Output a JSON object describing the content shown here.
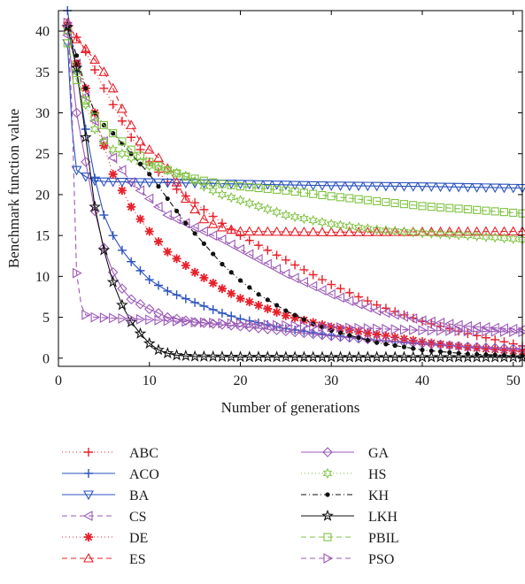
{
  "chart_data": {
    "type": "line",
    "title": "",
    "xlabel": "Number of generations",
    "ylabel": "Benchmark function value",
    "xlim": [
      0,
      51
    ],
    "ylim": [
      -1,
      42.5
    ],
    "xticks": [
      0,
      10,
      20,
      30,
      40,
      50
    ],
    "yticks": [
      0,
      5,
      10,
      15,
      20,
      25,
      30,
      35,
      40
    ],
    "grid": false,
    "legend_position": "bottom",
    "series": [
      {
        "name": "ABC",
        "color": "#e8202a",
        "dash": "1,3",
        "marker": "plus",
        "points": [
          [
            1,
            41
          ],
          [
            3,
            37.5
          ],
          [
            5,
            33
          ],
          [
            8,
            27
          ],
          [
            10,
            24
          ],
          [
            12,
            21.5
          ],
          [
            15,
            19
          ],
          [
            18,
            16.5
          ],
          [
            20,
            15
          ],
          [
            25,
            12
          ],
          [
            30,
            9
          ],
          [
            35,
            6.5
          ],
          [
            40,
            4.5
          ],
          [
            45,
            3
          ],
          [
            51,
            1.5
          ]
        ]
      },
      {
        "name": "ACO",
        "color": "#2a52be",
        "dash": "",
        "marker": "plus",
        "points": [
          [
            1,
            42.5
          ],
          [
            2,
            35
          ],
          [
            3,
            28
          ],
          [
            4,
            22
          ],
          [
            5,
            17.5
          ],
          [
            6,
            15
          ],
          [
            7,
            13.2
          ],
          [
            8,
            11.8
          ],
          [
            10,
            9.6
          ],
          [
            12,
            8.2
          ],
          [
            15,
            6.8
          ],
          [
            18,
            5.5
          ],
          [
            20,
            4.8
          ],
          [
            25,
            3.6
          ],
          [
            30,
            2.8
          ],
          [
            35,
            2.2
          ],
          [
            40,
            1.7
          ],
          [
            45,
            1.4
          ],
          [
            51,
            1.1
          ]
        ]
      },
      {
        "name": "BA",
        "color": "#2a52be",
        "dash": "",
        "marker": "triangle-down",
        "points": [
          [
            1,
            38.5
          ],
          [
            1.5,
            28
          ],
          [
            2,
            23
          ],
          [
            3,
            22.2
          ],
          [
            4,
            21.7
          ],
          [
            5,
            21.6
          ],
          [
            10,
            21.5
          ],
          [
            20,
            21.3
          ],
          [
            30,
            21.1
          ],
          [
            40,
            21
          ],
          [
            51,
            20.8
          ]
        ]
      },
      {
        "name": "CS",
        "color": "#9b59b6",
        "dash": "6,4",
        "marker": "triangle-left",
        "points": [
          [
            1,
            39.5
          ],
          [
            2,
            36
          ],
          [
            3,
            32
          ],
          [
            4,
            29
          ],
          [
            5,
            26.5
          ],
          [
            6,
            24.5
          ],
          [
            8,
            21.5
          ],
          [
            10,
            19.5
          ],
          [
            12,
            17.5
          ],
          [
            15,
            16
          ],
          [
            18,
            14.5
          ],
          [
            20,
            13.3
          ],
          [
            25,
            10.3
          ],
          [
            30,
            7.8
          ],
          [
            35,
            5.8
          ],
          [
            40,
            4.6
          ],
          [
            45,
            3.9
          ],
          [
            51,
            3.5
          ]
        ]
      },
      {
        "name": "DE",
        "color": "#e8202a",
        "dash": "1,3",
        "marker": "asterisk",
        "points": [
          [
            1,
            40.5
          ],
          [
            2,
            36
          ],
          [
            3,
            33
          ],
          [
            4,
            30
          ],
          [
            5,
            26
          ],
          [
            6,
            22.5
          ],
          [
            8,
            18.5
          ],
          [
            10,
            15.5
          ],
          [
            12,
            13
          ],
          [
            15,
            10.5
          ],
          [
            18,
            8.5
          ],
          [
            20,
            7.3
          ],
          [
            25,
            5.2
          ],
          [
            30,
            3.8
          ],
          [
            35,
            2.9
          ],
          [
            40,
            2
          ],
          [
            45,
            1.3
          ],
          [
            51,
            0.8
          ]
        ]
      },
      {
        "name": "ES",
        "color": "#e8202a",
        "dash": "6,4",
        "marker": "triangle-up",
        "points": [
          [
            1,
            41
          ],
          [
            2,
            39
          ],
          [
            3,
            37.8
          ],
          [
            4,
            36.5
          ],
          [
            5,
            35
          ],
          [
            6,
            33
          ],
          [
            7,
            30.5
          ],
          [
            8,
            28.5
          ],
          [
            9,
            26.5
          ],
          [
            10,
            25.5
          ],
          [
            11,
            24.5
          ],
          [
            12,
            23.2
          ],
          [
            13,
            21.5
          ],
          [
            14,
            19.5
          ],
          [
            15,
            18.2
          ],
          [
            16,
            17
          ],
          [
            17,
            16.4
          ],
          [
            18,
            16
          ],
          [
            19,
            15.7
          ],
          [
            20,
            15.5
          ],
          [
            30,
            15.4
          ],
          [
            51,
            15.5
          ]
        ]
      },
      {
        "name": "GA",
        "color": "#9b59b6",
        "dash": "",
        "marker": "diamond",
        "points": [
          [
            1,
            40
          ],
          [
            2,
            30
          ],
          [
            3,
            24
          ],
          [
            4,
            18
          ],
          [
            5,
            13.5
          ],
          [
            6,
            10.5
          ],
          [
            7,
            8.5
          ],
          [
            8,
            7.2
          ],
          [
            10,
            6
          ],
          [
            12,
            5
          ],
          [
            15,
            4.4
          ],
          [
            18,
            4.1
          ],
          [
            20,
            3.9
          ],
          [
            25,
            3.3
          ],
          [
            30,
            2.7
          ],
          [
            35,
            2.2
          ],
          [
            40,
            1.8
          ],
          [
            45,
            1.4
          ],
          [
            51,
            1.1
          ]
        ]
      },
      {
        "name": "HS",
        "color": "#7fc241",
        "dash": "1,3",
        "marker": "star6",
        "points": [
          [
            1,
            40
          ],
          [
            2,
            35
          ],
          [
            3,
            31
          ],
          [
            4,
            28
          ],
          [
            5,
            26.5
          ],
          [
            6,
            25.5
          ],
          [
            8,
            24.5
          ],
          [
            10,
            23.5
          ],
          [
            12,
            23
          ],
          [
            14,
            22.3
          ],
          [
            16,
            21
          ],
          [
            18,
            20
          ],
          [
            20,
            19.3
          ],
          [
            25,
            17.5
          ],
          [
            30,
            16.4
          ],
          [
            35,
            15.7
          ],
          [
            40,
            15.3
          ],
          [
            45,
            15
          ],
          [
            51,
            14.5
          ]
        ]
      },
      {
        "name": "KH",
        "color": "#111111",
        "dash": "6,3,1,3",
        "marker": "dot",
        "points": [
          [
            1,
            40.5
          ],
          [
            2,
            37
          ],
          [
            3,
            33
          ],
          [
            4,
            30
          ],
          [
            5,
            28.5
          ],
          [
            6,
            27.5
          ],
          [
            8,
            25
          ],
          [
            10,
            22.5
          ],
          [
            12,
            19.5
          ],
          [
            14,
            16.5
          ],
          [
            16,
            14
          ],
          [
            18,
            11.5
          ],
          [
            20,
            9.5
          ],
          [
            22,
            7.8
          ],
          [
            25,
            5.8
          ],
          [
            28,
            4.2
          ],
          [
            30,
            3.4
          ],
          [
            35,
            1.9
          ],
          [
            40,
            1
          ],
          [
            45,
            0.5
          ],
          [
            51,
            0.3
          ]
        ]
      },
      {
        "name": "LKH",
        "color": "#111111",
        "dash": "",
        "marker": "star5",
        "points": [
          [
            1,
            40.5
          ],
          [
            2,
            35.5
          ],
          [
            3,
            27
          ],
          [
            4,
            18.5
          ],
          [
            5,
            13.2
          ],
          [
            6,
            9.3
          ],
          [
            7,
            6.5
          ],
          [
            8,
            4.4
          ],
          [
            9,
            3
          ],
          [
            10,
            1.8
          ],
          [
            11,
            1
          ],
          [
            12,
            0.6
          ],
          [
            13,
            0.35
          ],
          [
            15,
            0.2
          ],
          [
            20,
            0.15
          ],
          [
            30,
            0.12
          ],
          [
            40,
            0.12
          ],
          [
            51,
            0.1
          ]
        ]
      },
      {
        "name": "PBIL",
        "color": "#7fc241",
        "dash": "6,4",
        "marker": "square",
        "points": [
          [
            1,
            38.5
          ],
          [
            2,
            34
          ],
          [
            3,
            31.5
          ],
          [
            4,
            29.5
          ],
          [
            5,
            28.5
          ],
          [
            6,
            27.5
          ],
          [
            8,
            25.5
          ],
          [
            10,
            24
          ],
          [
            12,
            23
          ],
          [
            14,
            22.2
          ],
          [
            16,
            21.7
          ],
          [
            18,
            21.3
          ],
          [
            20,
            21
          ],
          [
            25,
            20.5
          ],
          [
            30,
            19.8
          ],
          [
            35,
            19.2
          ],
          [
            40,
            18.6
          ],
          [
            45,
            18.2
          ],
          [
            51,
            17.7
          ]
        ]
      },
      {
        "name": "PSO",
        "color": "#9b59b6",
        "dash": "6,4",
        "marker": "triangle-right",
        "points": [
          [
            1,
            41
          ],
          [
            1.5,
            30
          ],
          [
            2,
            10.4
          ],
          [
            2.5,
            6.5
          ],
          [
            3,
            5.3
          ],
          [
            4,
            5
          ],
          [
            6,
            4.9
          ],
          [
            10,
            4.7
          ],
          [
            15,
            4.4
          ],
          [
            20,
            4.2
          ],
          [
            25,
            4
          ],
          [
            30,
            3.8
          ],
          [
            35,
            3.6
          ],
          [
            40,
            3.4
          ],
          [
            45,
            3.3
          ],
          [
            51,
            3.2
          ]
        ]
      }
    ]
  }
}
